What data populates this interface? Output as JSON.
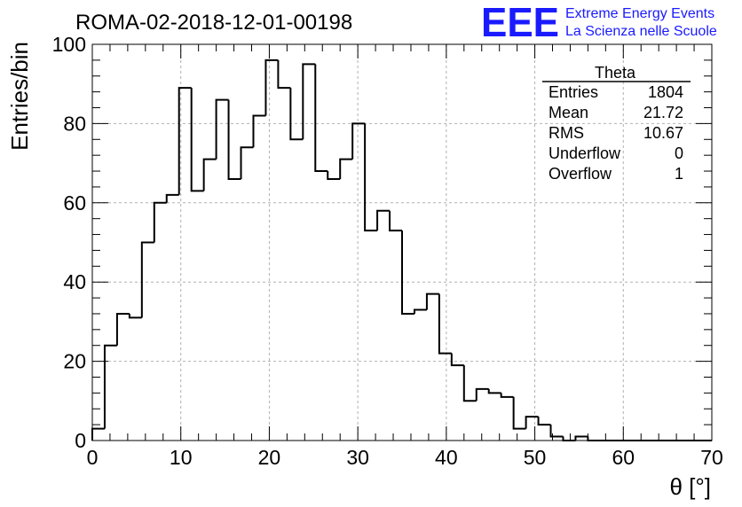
{
  "chart_data": {
    "type": "histogram",
    "title": "ROMA-02-2018-12-01-00198",
    "xlabel": "θ [°]",
    "ylabel": "Entries/bin",
    "xlim": [
      0,
      70
    ],
    "ylim": [
      0,
      100
    ],
    "grid": true,
    "bin_width": 1.4,
    "x_ticks": [
      0,
      10,
      20,
      30,
      40,
      50,
      60,
      70
    ],
    "y_ticks": [
      0,
      20,
      40,
      60,
      80,
      100
    ],
    "x_tick_labels": [
      "0",
      "10",
      "20",
      "30",
      "40",
      "50",
      "60",
      "70"
    ],
    "y_tick_labels": [
      "0",
      "20",
      "40",
      "60",
      "80",
      "100"
    ],
    "bins": [
      {
        "x0": 0.0,
        "x1": 1.4,
        "count": 3
      },
      {
        "x0": 1.4,
        "x1": 2.8,
        "count": 24
      },
      {
        "x0": 2.8,
        "x1": 4.2,
        "count": 32
      },
      {
        "x0": 4.2,
        "x1": 5.6,
        "count": 31
      },
      {
        "x0": 5.6,
        "x1": 7.0,
        "count": 50
      },
      {
        "x0": 7.0,
        "x1": 8.4,
        "count": 60
      },
      {
        "x0": 8.4,
        "x1": 9.8,
        "count": 62
      },
      {
        "x0": 9.8,
        "x1": 11.2,
        "count": 89
      },
      {
        "x0": 11.2,
        "x1": 12.6,
        "count": 63
      },
      {
        "x0": 12.6,
        "x1": 14.0,
        "count": 71
      },
      {
        "x0": 14.0,
        "x1": 15.4,
        "count": 86
      },
      {
        "x0": 15.4,
        "x1": 16.8,
        "count": 66
      },
      {
        "x0": 16.8,
        "x1": 18.2,
        "count": 74
      },
      {
        "x0": 18.2,
        "x1": 19.6,
        "count": 82
      },
      {
        "x0": 19.6,
        "x1": 21.0,
        "count": 96
      },
      {
        "x0": 21.0,
        "x1": 22.4,
        "count": 89
      },
      {
        "x0": 22.4,
        "x1": 23.8,
        "count": 76
      },
      {
        "x0": 23.8,
        "x1": 25.2,
        "count": 95
      },
      {
        "x0": 25.2,
        "x1": 26.6,
        "count": 68
      },
      {
        "x0": 26.6,
        "x1": 28.0,
        "count": 66
      },
      {
        "x0": 28.0,
        "x1": 29.4,
        "count": 71
      },
      {
        "x0": 29.4,
        "x1": 30.8,
        "count": 80
      },
      {
        "x0": 30.8,
        "x1": 32.2,
        "count": 53
      },
      {
        "x0": 32.2,
        "x1": 33.6,
        "count": 58
      },
      {
        "x0": 33.6,
        "x1": 35.0,
        "count": 53
      },
      {
        "x0": 35.0,
        "x1": 36.4,
        "count": 32
      },
      {
        "x0": 36.4,
        "x1": 37.8,
        "count": 33
      },
      {
        "x0": 37.8,
        "x1": 39.2,
        "count": 37
      },
      {
        "x0": 39.2,
        "x1": 40.6,
        "count": 22
      },
      {
        "x0": 40.6,
        "x1": 42.0,
        "count": 19
      },
      {
        "x0": 42.0,
        "x1": 43.4,
        "count": 10
      },
      {
        "x0": 43.4,
        "x1": 44.8,
        "count": 13
      },
      {
        "x0": 44.8,
        "x1": 46.2,
        "count": 12
      },
      {
        "x0": 46.2,
        "x1": 47.6,
        "count": 11
      },
      {
        "x0": 47.6,
        "x1": 49.0,
        "count": 3
      },
      {
        "x0": 49.0,
        "x1": 50.4,
        "count": 6
      },
      {
        "x0": 50.4,
        "x1": 51.8,
        "count": 4
      },
      {
        "x0": 51.8,
        "x1": 53.2,
        "count": 1
      },
      {
        "x0": 53.2,
        "x1": 54.6,
        "count": 0
      },
      {
        "x0": 54.6,
        "x1": 56.0,
        "count": 1
      },
      {
        "x0": 56.0,
        "x1": 70.0,
        "count": 0
      }
    ],
    "stats_box": {
      "title": "Theta",
      "rows": [
        {
          "label": "Entries",
          "value": "1804"
        },
        {
          "label": "Mean",
          "value": "21.72"
        },
        {
          "label": "RMS",
          "value": "10.67"
        },
        {
          "label": "Underflow",
          "value": "0"
        },
        {
          "label": "Overflow",
          "value": "1"
        }
      ]
    },
    "line_color": "#000000",
    "grid_color": "#b0b0b0"
  },
  "logo": {
    "mark": "EEE",
    "line1": "Extreme Energy Events",
    "line2": "La Scienza nelle Scuole",
    "color": "#1a1aff"
  }
}
